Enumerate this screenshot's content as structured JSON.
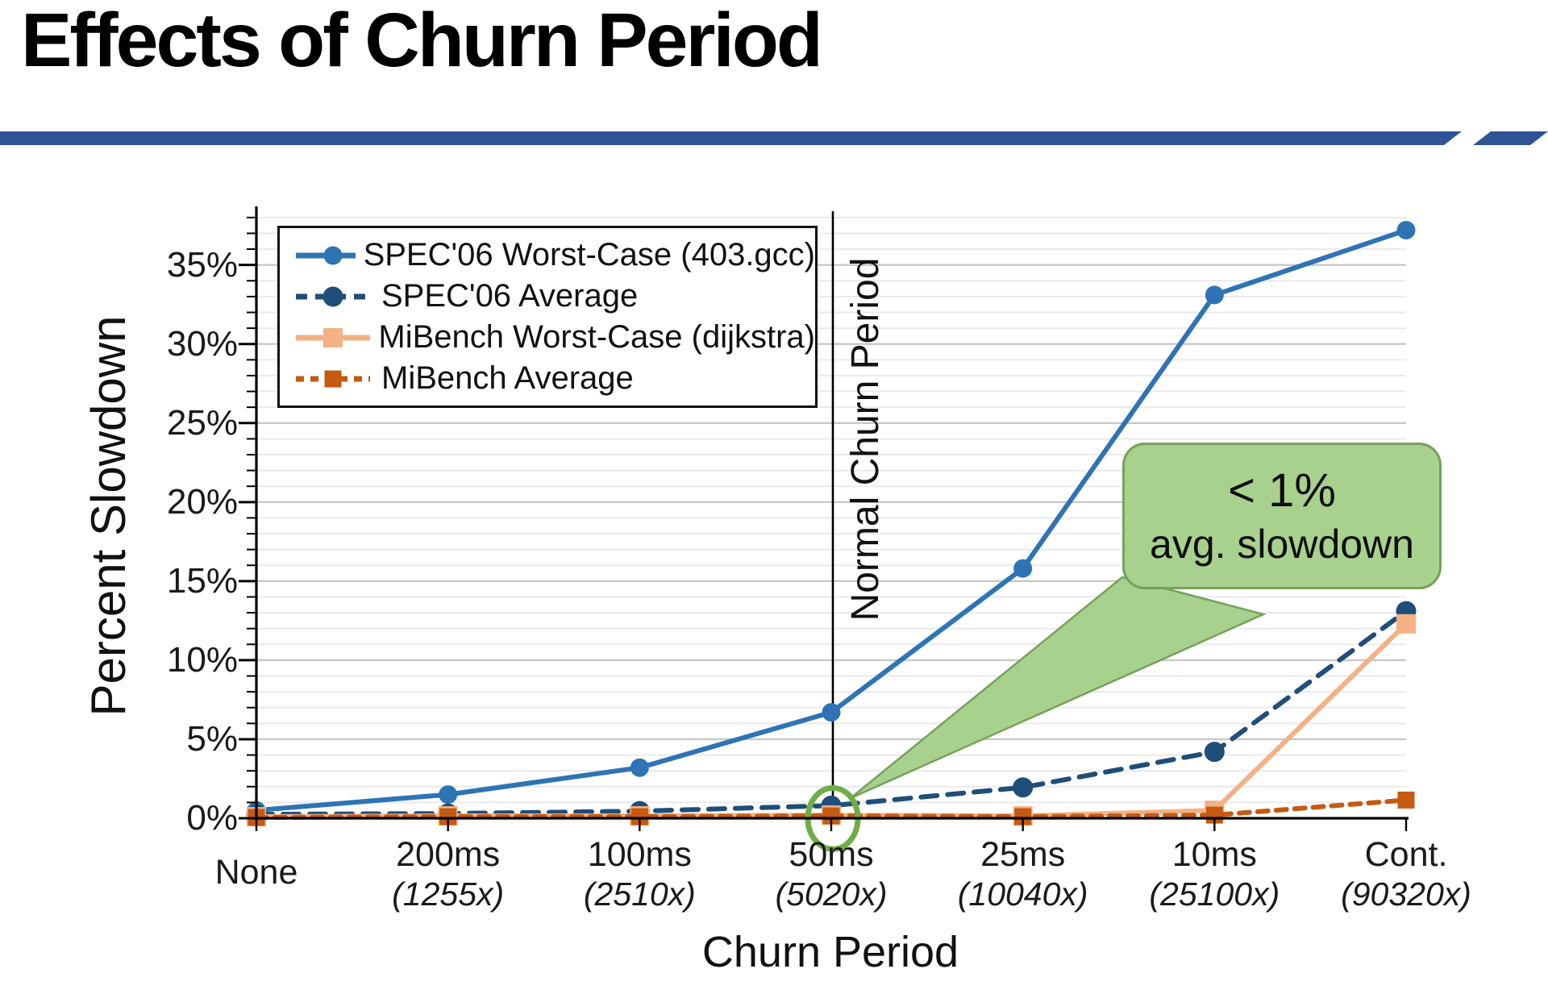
{
  "slide": {
    "title": "Effects of Churn Period",
    "accent_color": "#2F5496"
  },
  "chart_data": {
    "type": "line",
    "xlabel": "Churn Period",
    "ylabel": "Percent Slowdown",
    "categories": [
      "None",
      "200ms",
      "100ms",
      "50ms",
      "25ms",
      "10ms",
      "Cont."
    ],
    "category_sublabels": [
      "",
      "(1255x)",
      "(2510x)",
      "(5020x)",
      "(10040x)",
      "(25100x)",
      "(90320x)"
    ],
    "ylim": [
      0,
      38.4
    ],
    "ytick_values": [
      0,
      5,
      10,
      15,
      20,
      25,
      30,
      35
    ],
    "ytick_labels": [
      "0%",
      "5%",
      "10%",
      "15%",
      "20%",
      "25%",
      "30%",
      "35%"
    ],
    "grid": "horizontal-minor-1pct-major-5pct",
    "legend_position": "top-left-inside",
    "series": [
      {
        "name": "SPEC'06 Worst-Case (403.gcc)",
        "color": "#2E74B5",
        "dash": "solid",
        "marker": "circle",
        "values": [
          0.5,
          1.5,
          3.2,
          6.7,
          15.8,
          33.1,
          37.2
        ]
      },
      {
        "name": "SPEC'06 Average",
        "color": "#1F4E79",
        "dash": "dashed",
        "marker": "circle",
        "values": [
          0.25,
          0.3,
          0.45,
          0.8,
          1.95,
          4.2,
          13.1
        ]
      },
      {
        "name": "MiBench Worst-Case (dijkstra)",
        "color": "#F4B183",
        "dash": "solid",
        "marker": "square",
        "values": [
          0.1,
          0.15,
          0.15,
          0.2,
          0.15,
          0.5,
          12.3
        ]
      },
      {
        "name": "MiBench Average",
        "color": "#C55A11",
        "dash": "dashed",
        "marker": "square",
        "values": [
          0.05,
          0.1,
          0.1,
          0.15,
          0.1,
          0.2,
          1.15
        ]
      }
    ],
    "annotations": {
      "vline": {
        "category": "50ms",
        "label": "Normal Churn Period",
        "color": "#000000"
      },
      "callout": {
        "line1": "< 1%",
        "line2": "avg. slowdown",
        "fill": "#A9D18E",
        "border": "#76A05B",
        "target_category": "50ms"
      },
      "highlight_circle": {
        "category": "50ms",
        "value": 0.8,
        "color": "#70AD47"
      }
    }
  }
}
